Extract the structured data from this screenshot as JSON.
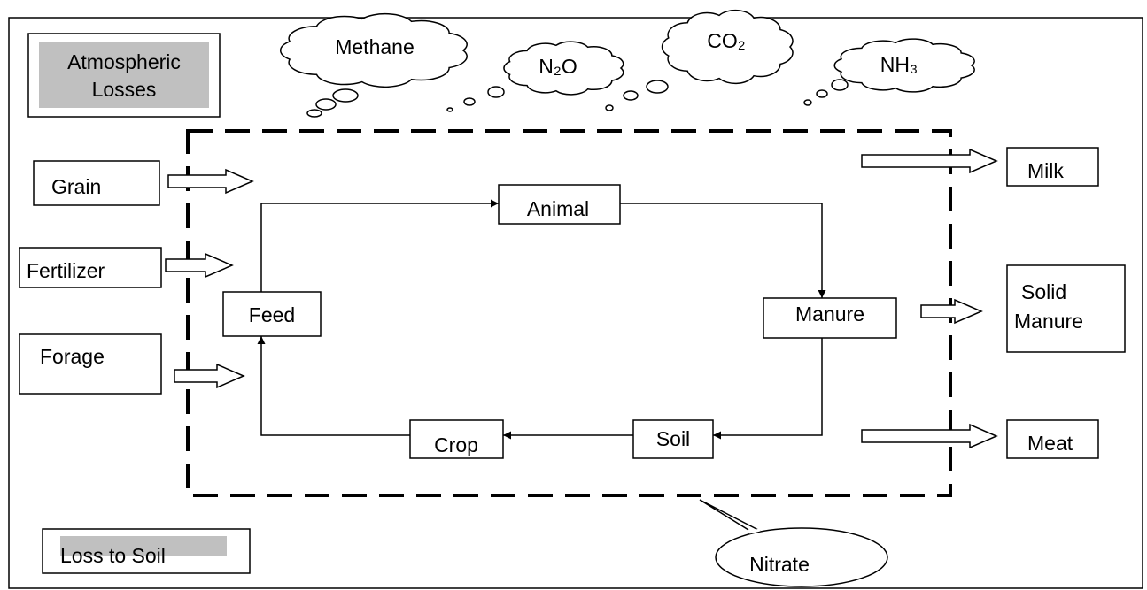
{
  "legend": {
    "atmospheric_losses": [
      "Atmospheric",
      "Losses"
    ],
    "loss_to_soil": "Loss to Soil"
  },
  "gases": [
    "Methane",
    "N₂O",
    "CO₂",
    "NH₃"
  ],
  "inputs": [
    "Grain",
    "Fertilizer",
    "Forage"
  ],
  "cycle": [
    "Animal",
    "Manure",
    "Soil",
    "Crop",
    "Feed"
  ],
  "outputs": {
    "milk": "Milk",
    "solid_manure": [
      "Solid",
      "Manure"
    ],
    "meat": "Meat"
  },
  "leaching": "Nitrate"
}
